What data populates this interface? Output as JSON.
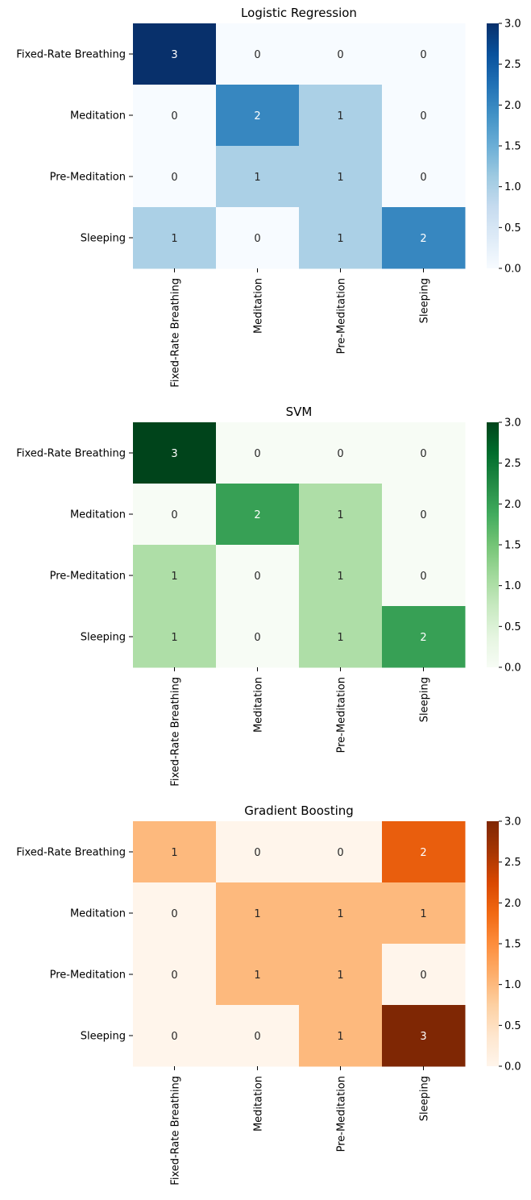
{
  "chart_data": [
    {
      "type": "heatmap",
      "title": "Logistic Regression",
      "x_categories": [
        "Fixed-Rate Breathing",
        "Meditation",
        "Pre-Meditation",
        "Sleeping"
      ],
      "y_categories": [
        "Fixed-Rate Breathing",
        "Meditation",
        "Pre-Meditation",
        "Sleeping"
      ],
      "values": [
        [
          3,
          0,
          0,
          0
        ],
        [
          0,
          2,
          1,
          0
        ],
        [
          0,
          1,
          1,
          0
        ],
        [
          1,
          0,
          1,
          2
        ]
      ],
      "colormap": "Blues",
      "color_stops": [
        "#f7fbff",
        "#deebf7",
        "#c6dbef",
        "#9ecae1",
        "#6baed6",
        "#4292c6",
        "#2171b5",
        "#08519c",
        "#08306b"
      ],
      "vmin": 0,
      "vmax": 3,
      "colorbar_ticks": [
        "0.0",
        "0.5",
        "1.0",
        "1.5",
        "2.0",
        "2.5",
        "3.0"
      ]
    },
    {
      "type": "heatmap",
      "title": "SVM",
      "x_categories": [
        "Fixed-Rate Breathing",
        "Meditation",
        "Pre-Meditation",
        "Sleeping"
      ],
      "y_categories": [
        "Fixed-Rate Breathing",
        "Meditation",
        "Pre-Meditation",
        "Sleeping"
      ],
      "values": [
        [
          3,
          0,
          0,
          0
        ],
        [
          0,
          2,
          1,
          0
        ],
        [
          1,
          0,
          1,
          0
        ],
        [
          1,
          0,
          1,
          2
        ]
      ],
      "colormap": "Greens",
      "color_stops": [
        "#f7fcf5",
        "#e5f5e0",
        "#c7e9c0",
        "#a1d99b",
        "#74c476",
        "#41ab5d",
        "#238b45",
        "#006d2c",
        "#00441b"
      ],
      "vmin": 0,
      "vmax": 3,
      "colorbar_ticks": [
        "0.0",
        "0.5",
        "1.0",
        "1.5",
        "2.0",
        "2.5",
        "3.0"
      ]
    },
    {
      "type": "heatmap",
      "title": "Gradient Boosting",
      "x_categories": [
        "Fixed-Rate Breathing",
        "Meditation",
        "Pre-Meditation",
        "Sleeping"
      ],
      "y_categories": [
        "Fixed-Rate Breathing",
        "Meditation",
        "Pre-Meditation",
        "Sleeping"
      ],
      "values": [
        [
          1,
          0,
          0,
          2
        ],
        [
          0,
          1,
          1,
          1
        ],
        [
          0,
          1,
          1,
          0
        ],
        [
          0,
          0,
          1,
          3
        ]
      ],
      "colormap": "Oranges",
      "color_stops": [
        "#fff5eb",
        "#fee6ce",
        "#fdd0a2",
        "#fdae6b",
        "#fd8d3c",
        "#f16913",
        "#d94801",
        "#a63603",
        "#7f2704"
      ],
      "vmin": 0,
      "vmax": 3,
      "colorbar_ticks": [
        "0.0",
        "0.5",
        "1.0",
        "1.5",
        "2.0",
        "2.5",
        "3.0"
      ]
    }
  ]
}
